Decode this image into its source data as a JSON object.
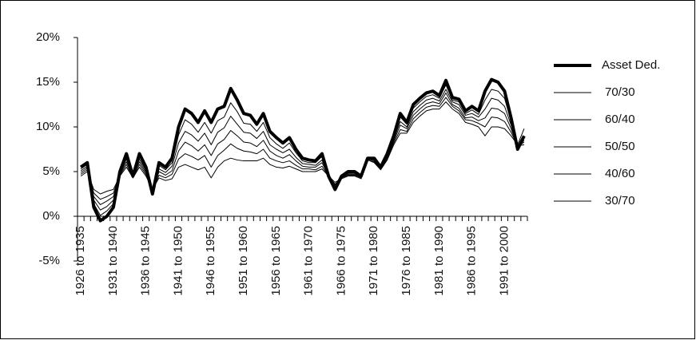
{
  "chart_data": {
    "type": "line",
    "categories": [
      "1926 to 1935",
      null,
      null,
      null,
      null,
      "1931 to 1940",
      null,
      null,
      null,
      null,
      "1936 to 1945",
      null,
      null,
      null,
      null,
      "1941 to 1950",
      null,
      null,
      null,
      null,
      "1946 to 1955",
      null,
      null,
      null,
      null,
      "1951 to 1960",
      null,
      null,
      null,
      null,
      "1956 to 1965",
      null,
      null,
      null,
      null,
      "1961 to 1970",
      null,
      null,
      null,
      null,
      "1966 to 1975",
      null,
      null,
      null,
      null,
      "1971 to 1980",
      null,
      null,
      null,
      null,
      "1976 to 1985",
      null,
      null,
      null,
      null,
      "1981 to 1990",
      null,
      null,
      null,
      null,
      "1986 to 1995",
      null,
      null,
      null,
      null,
      "1991 to 2000",
      null,
      null,
      null
    ],
    "series": [
      {
        "name": "Asset Ded.",
        "color": "#000000",
        "values": [
          5.5,
          6,
          1,
          -0.5,
          0,
          1,
          5,
          7,
          4.5,
          7,
          5.5,
          2.5,
          6,
          5.5,
          6.5,
          10,
          12,
          11.5,
          10.5,
          11.8,
          10.5,
          12,
          12.3,
          14.3,
          13,
          11.5,
          11.3,
          10.3,
          11.5,
          9.5,
          8.8,
          8.2,
          8.8,
          7.5,
          6.5,
          6.3,
          6.2,
          7,
          4.5,
          3,
          4.5,
          5,
          5,
          4.5,
          6.5,
          6.5,
          5.5,
          7,
          9,
          11.5,
          10.5,
          12.5,
          13.2,
          13.8,
          14,
          13.5,
          15.2,
          13.3,
          13.1,
          11.8,
          12.3,
          11.8,
          14,
          15.3,
          15,
          14,
          11,
          7.5,
          9
        ]
      },
      {
        "name": "70/30",
        "color": "#000000",
        "values": [
          5.3,
          5.8,
          1.4,
          0.1,
          0.6,
          1.4,
          4.9,
          6.7,
          4.5,
          6.7,
          5.3,
          2.6,
          5.7,
          5.2,
          6.0,
          9.1,
          10.8,
          10.3,
          9.4,
          10.5,
          9.3,
          10.7,
          11.1,
          12.7,
          11.7,
          10.4,
          10.3,
          9.5,
          10.5,
          8.8,
          8.1,
          7.6,
          8.2,
          7.1,
          6.2,
          6.0,
          6.0,
          6.7,
          4.5,
          3.2,
          4.4,
          4.9,
          4.9,
          4.4,
          6.5,
          6.4,
          5.4,
          6.9,
          8.8,
          11.1,
          10.3,
          12.1,
          12.8,
          13.4,
          13.6,
          13.2,
          14.7,
          13.0,
          12.8,
          11.5,
          11.9,
          11.4,
          13.0,
          14.2,
          14.0,
          13.2,
          10.6,
          7.6,
          8.8
        ]
      },
      {
        "name": "60/40",
        "color": "#000000",
        "values": [
          5.1,
          5.6,
          1.8,
          0.7,
          1.1,
          1.8,
          4.8,
          6.4,
          4.4,
          6.4,
          5.1,
          2.7,
          5.3,
          4.9,
          5.6,
          8.2,
          9.5,
          9.1,
          8.4,
          9.3,
          8.0,
          9.4,
          9.9,
          11.2,
          10.3,
          9.4,
          9.3,
          8.7,
          9.5,
          8.0,
          7.5,
          7.1,
          7.5,
          6.6,
          5.9,
          5.8,
          5.7,
          6.3,
          4.5,
          3.3,
          4.4,
          4.8,
          4.8,
          4.4,
          6.4,
          6.3,
          5.4,
          6.7,
          8.6,
          10.6,
          10.0,
          11.7,
          12.4,
          13.0,
          13.2,
          12.9,
          14.2,
          12.8,
          12.5,
          11.3,
          11.5,
          11.1,
          12.0,
          13.2,
          13.0,
          12.3,
          10.2,
          7.7,
          8.5
        ]
      },
      {
        "name": "50/50",
        "color": "#000000",
        "values": [
          4.9,
          5.4,
          2.2,
          1.3,
          1.7,
          2.2,
          4.7,
          6.1,
          4.4,
          6.1,
          4.9,
          2.8,
          5.0,
          4.6,
          5.1,
          7.3,
          8.3,
          7.9,
          7.3,
          8.0,
          6.8,
          8.1,
          8.6,
          9.6,
          9.0,
          8.3,
          8.2,
          7.8,
          8.5,
          7.3,
          6.8,
          6.5,
          6.9,
          6.2,
          5.6,
          5.5,
          5.5,
          6.0,
          4.5,
          3.5,
          4.3,
          4.7,
          4.7,
          4.3,
          6.4,
          6.2,
          5.3,
          6.6,
          8.4,
          10.2,
          9.8,
          11.3,
          12.0,
          12.6,
          12.8,
          12.6,
          13.8,
          12.5,
          12.1,
          11.0,
          11.1,
          10.7,
          11.0,
          12.1,
          12.0,
          11.5,
          9.8,
          7.8,
          8.3
        ]
      },
      {
        "name": "40/60",
        "color": "#000000",
        "values": [
          4.7,
          5.2,
          2.6,
          1.9,
          2.2,
          2.6,
          4.6,
          5.8,
          4.3,
          5.8,
          4.7,
          2.9,
          4.6,
          4.3,
          4.7,
          6.4,
          7.0,
          6.7,
          6.3,
          6.8,
          5.5,
          6.8,
          7.4,
          8.1,
          7.6,
          7.3,
          7.2,
          7.0,
          7.5,
          6.5,
          6.2,
          6.0,
          6.2,
          5.7,
          5.3,
          5.3,
          5.2,
          5.6,
          4.5,
          3.6,
          4.3,
          4.6,
          4.6,
          4.3,
          6.3,
          6.1,
          5.3,
          6.4,
          8.2,
          9.7,
          9.5,
          10.9,
          11.6,
          12.2,
          12.4,
          12.3,
          13.3,
          12.3,
          11.8,
          10.8,
          10.7,
          10.4,
          10.0,
          11.1,
          11.0,
          10.6,
          9.4,
          7.9,
          8.0
        ]
      },
      {
        "name": "30/70",
        "color": "#000000",
        "values": [
          4.5,
          5,
          3,
          2.5,
          2.8,
          3,
          4.5,
          5.5,
          4.3,
          5.5,
          4.5,
          3,
          4.3,
          4,
          4.2,
          5.5,
          5.8,
          5.5,
          5.2,
          5.5,
          4.3,
          5.5,
          6.2,
          6.5,
          6.3,
          6.2,
          6.2,
          6.2,
          6.5,
          5.8,
          5.5,
          5.4,
          5.6,
          5.3,
          5,
          5,
          5,
          5.3,
          4.5,
          3.8,
          4.2,
          4.5,
          4.5,
          4.2,
          6.3,
          6,
          5.2,
          6.3,
          8,
          9.3,
          9.3,
          10.5,
          11.2,
          11.8,
          12,
          12,
          12.8,
          12,
          11.5,
          10.5,
          10.3,
          10,
          9,
          10,
          10,
          9.8,
          9,
          8,
          9.8
        ]
      }
    ],
    "ylim": [
      -5,
      20
    ],
    "yticks": [
      {
        "value": -5,
        "label": "-5%"
      },
      {
        "value": 0,
        "label": "0%"
      },
      {
        "value": 5,
        "label": "5%"
      },
      {
        "value": 10,
        "label": "10%"
      },
      {
        "value": 15,
        "label": "15%"
      },
      {
        "value": 20,
        "label": "20%"
      }
    ],
    "grid": false,
    "legend": "right"
  }
}
